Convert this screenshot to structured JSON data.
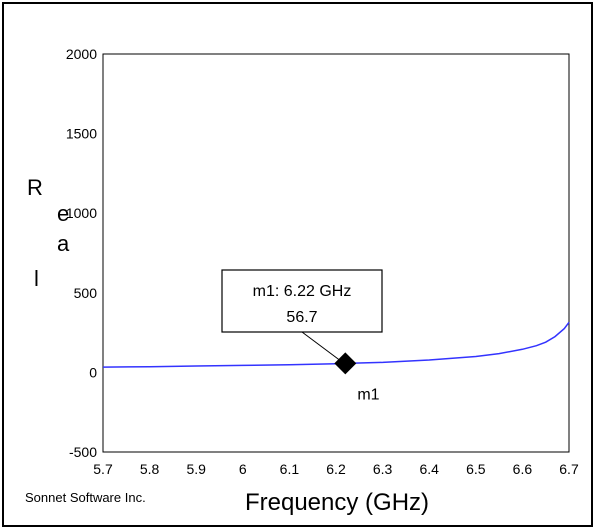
{
  "chart_data": {
    "type": "line",
    "xlabel": "Frequency (GHz)",
    "ylabel": "Real",
    "xlim": [
      5.7,
      6.7
    ],
    "ylim": [
      -500,
      2000
    ],
    "x_ticks": [
      "5.7",
      "5.8",
      "5.9",
      "6",
      "6.1",
      "6.2",
      "6.3",
      "6.4",
      "6.5",
      "6.6",
      "6.7"
    ],
    "y_ticks": [
      "2000",
      "1500",
      "1000",
      "500",
      "0",
      "-500"
    ],
    "grid": false,
    "series": [
      {
        "color": "#3333ff",
        "x": [
          5.7,
          5.8,
          5.9,
          6.0,
          6.1,
          6.2,
          6.22,
          6.3,
          6.4,
          6.5,
          6.55,
          6.6,
          6.63,
          6.65,
          6.67,
          6.69,
          6.7
        ],
        "y": [
          33,
          36,
          40,
          44,
          48,
          54,
          56.7,
          63,
          78,
          100,
          118,
          145,
          168,
          190,
          225,
          275,
          315
        ]
      }
    ],
    "marker": {
      "name": "m1",
      "x": 6.22,
      "y": 56.7,
      "label_line1": "m1: 6.22 GHz",
      "label_line2": "56.7"
    },
    "watermark": "Sonnet Software Inc."
  }
}
